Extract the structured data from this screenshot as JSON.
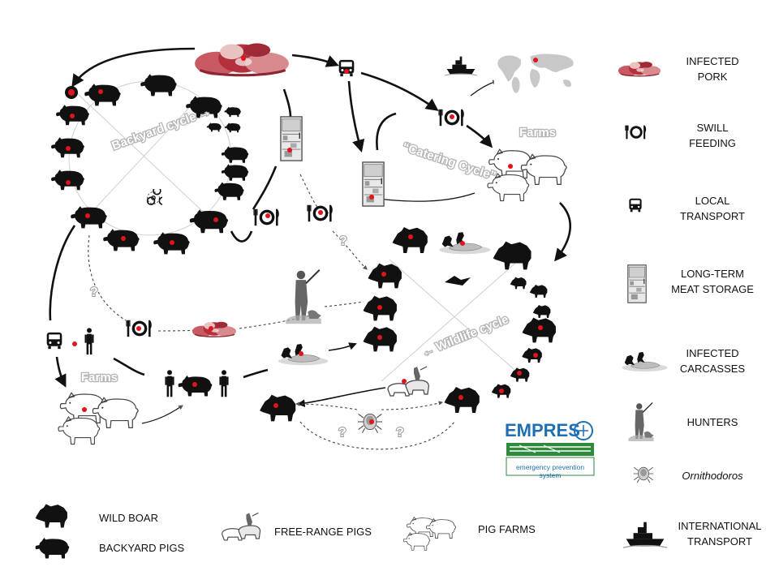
{
  "cycles": {
    "backyard": "Backyard cycle →",
    "catering": "“Catering Cycle”",
    "wildlife": "← Wildlife cycle"
  },
  "farms_label": "Farms",
  "question_mark": "?",
  "legend_right": [
    {
      "id": "infected-pork",
      "label": "INFECTED\nPORK",
      "icon": "meat-icon"
    },
    {
      "id": "swill-feeding",
      "label": "SWILL\nFEEDING",
      "icon": "plate-icon"
    },
    {
      "id": "local-transport",
      "label": "LOCAL\nTRANSPORT",
      "icon": "bus-icon"
    },
    {
      "id": "long-term-storage",
      "label": "LONG-TERM\nMEAT STORAGE",
      "icon": "fridge-icon"
    },
    {
      "id": "infected-carcasses",
      "label": "INFECTED\nCARCASSES",
      "icon": "carcass-icon"
    },
    {
      "id": "hunters",
      "label": "HUNTERS",
      "icon": "hunter-icon"
    },
    {
      "id": "ornithodoros",
      "label": "Ornithodoros",
      "icon": "tick-icon"
    },
    {
      "id": "international-transport",
      "label": "INTERNATIONAL\nTRANSPORT",
      "icon": "ship-icon"
    }
  ],
  "legend_bottom": [
    {
      "id": "wild-boar",
      "label": "WILD BOAR",
      "icon": "wild-boar-icon"
    },
    {
      "id": "backyard-pigs",
      "label": "BACKYARD PIGS",
      "icon": "pig-icon"
    },
    {
      "id": "free-range-pigs",
      "label": "FREE-RANGE PIGS",
      "icon": "free-range-pigs-icon"
    },
    {
      "id": "pig-farms",
      "label": "PIG FARMS",
      "icon": "farm-pigs-icon"
    }
  ],
  "logo": {
    "word": "EMPRES",
    "subtitle": "emergency prevention system",
    "colors": {
      "blue": "#1f6fb5",
      "green": "#2f8a3c"
    }
  },
  "colors": {
    "infection_dot": "#e0141c",
    "silhouette": "#111111",
    "arrow": "#111111",
    "dashed": "#444444",
    "cycle_text_outline": "#b5b5b5"
  }
}
